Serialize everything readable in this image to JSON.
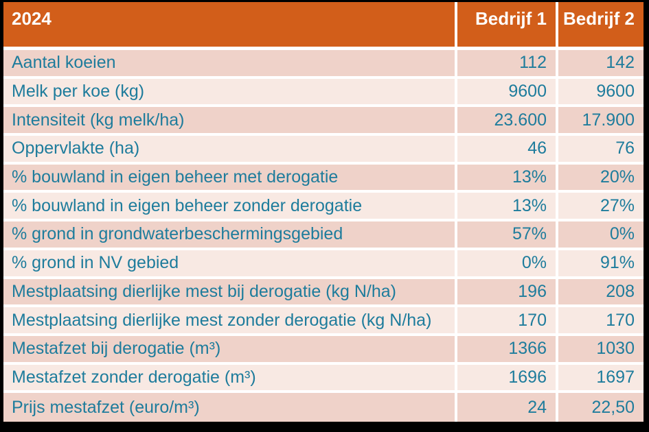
{
  "chart_data": {
    "type": "table",
    "title": "2024",
    "columns": [
      "Bedrijf 1",
      "Bedrijf 2"
    ],
    "rows": [
      {
        "label": "Aantal koeien",
        "values": [
          "112",
          "142"
        ]
      },
      {
        "label": "Melk per koe (kg)",
        "values": [
          "9600",
          "9600"
        ]
      },
      {
        "label": "Intensiteit (kg melk/ha)",
        "values": [
          "23.600",
          "17.900"
        ]
      },
      {
        "label": "Oppervlakte (ha)",
        "values": [
          "46",
          "76"
        ]
      },
      {
        "label": "% bouwland in eigen beheer met derogatie",
        "values": [
          "13%",
          "20%"
        ]
      },
      {
        "label": "% bouwland in eigen beheer zonder derogatie",
        "values": [
          "13%",
          "27%"
        ]
      },
      {
        "label": "% grond in grondwaterbeschermingsgebied",
        "values": [
          "57%",
          "0%"
        ]
      },
      {
        "label": "% grond in NV gebied",
        "values": [
          "0%",
          "91%"
        ]
      },
      {
        "label": "Mestplaatsing dierlijke mest bij derogatie (kg N/ha)",
        "values": [
          "196",
          "208"
        ]
      },
      {
        "label": "Mestplaatsing dierlijke mest zonder derogatie (kg N/ha)",
        "values": [
          "170",
          "170"
        ]
      },
      {
        "label": "Mestafzet bij derogatie (m³)",
        "values": [
          "1366",
          "1030"
        ]
      },
      {
        "label": "Mestafzet zonder derogatie (m³)",
        "values": [
          "1696",
          "1697"
        ]
      },
      {
        "label": "Prijs mestafzet (euro/m³)",
        "values": [
          "24",
          "22,50"
        ]
      }
    ]
  },
  "colors": {
    "header_bg": "#d25e1a",
    "header_text": "#ffffff",
    "row_odd_bg": "#efd2c9",
    "row_even_bg": "#f8e9e3",
    "cell_text": "#1e7c9c",
    "separator": "#ffffff",
    "frame": "#000000"
  }
}
